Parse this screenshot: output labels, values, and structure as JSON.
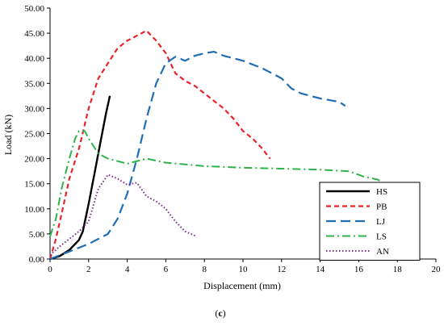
{
  "chart_data": {
    "type": "line",
    "title": "",
    "xlabel": "Displacement (mm)",
    "ylabel": "Load (kN)",
    "xlim": [
      0,
      20
    ],
    "ylim": [
      0,
      50
    ],
    "x_ticks": [
      "0",
      "2",
      "4",
      "6",
      "8",
      "10",
      "12",
      "14",
      "16",
      "18",
      "20"
    ],
    "y_ticks": [
      "0.00",
      "5.00",
      "10.00",
      "15.00",
      "20.00",
      "25.00",
      "30.00",
      "35.00",
      "40.00",
      "45.00",
      "50.00"
    ],
    "grid": false,
    "legend_position": "bottom-right",
    "caption_prefix": "(",
    "caption_letter": "c",
    "caption_suffix": ")",
    "series": [
      {
        "name": "HS",
        "color": "#000000",
        "dash": "solid",
        "points": [
          [
            0,
            0
          ],
          [
            0.5,
            0.6
          ],
          [
            1.0,
            1.8
          ],
          [
            1.5,
            3.8
          ],
          [
            1.7,
            5.5
          ],
          [
            2.0,
            11
          ],
          [
            2.3,
            17
          ],
          [
            2.6,
            23
          ],
          [
            2.9,
            29
          ],
          [
            3.1,
            32.5
          ]
        ]
      },
      {
        "name": "PB",
        "color": "#e8242a",
        "dash": "dashed",
        "points": [
          [
            0,
            0
          ],
          [
            0.3,
            4
          ],
          [
            0.6,
            9
          ],
          [
            1.0,
            16
          ],
          [
            1.5,
            22
          ],
          [
            2.0,
            30
          ],
          [
            2.5,
            36
          ],
          [
            3.0,
            39
          ],
          [
            3.5,
            42
          ],
          [
            4.0,
            43.5
          ],
          [
            4.5,
            44.5
          ],
          [
            5.0,
            45.5
          ],
          [
            5.5,
            43.5
          ],
          [
            6.0,
            41
          ],
          [
            6.5,
            37
          ],
          [
            7.0,
            35.5
          ],
          [
            7.5,
            34.5
          ],
          [
            8.0,
            33
          ],
          [
            8.5,
            31.5
          ],
          [
            9.0,
            30
          ],
          [
            9.5,
            28
          ],
          [
            10.0,
            25.5
          ],
          [
            10.5,
            24
          ],
          [
            11.0,
            22
          ],
          [
            11.4,
            20
          ]
        ]
      },
      {
        "name": "LJ",
        "color": "#1f6db4",
        "dash": "longdash",
        "points": [
          [
            0,
            0
          ],
          [
            1.0,
            1.5
          ],
          [
            2.0,
            3
          ],
          [
            3.0,
            5
          ],
          [
            3.5,
            8
          ],
          [
            4.0,
            13
          ],
          [
            4.5,
            20
          ],
          [
            5.0,
            28
          ],
          [
            5.5,
            35
          ],
          [
            6.0,
            39
          ],
          [
            6.5,
            40.3
          ],
          [
            7.0,
            39.5
          ],
          [
            7.5,
            40.5
          ],
          [
            8.0,
            41
          ],
          [
            8.5,
            41.3
          ],
          [
            9.0,
            40.5
          ],
          [
            10.0,
            39.5
          ],
          [
            11.0,
            38
          ],
          [
            12.0,
            36
          ],
          [
            12.5,
            34
          ],
          [
            13.0,
            33
          ],
          [
            14.0,
            32
          ],
          [
            15.0,
            31.3
          ],
          [
            15.3,
            30.5
          ]
        ]
      },
      {
        "name": "LS",
        "color": "#2db34a",
        "dash": "dashdot",
        "points": [
          [
            0,
            4.5
          ],
          [
            0.3,
            8
          ],
          [
            0.6,
            14
          ],
          [
            1.0,
            20
          ],
          [
            1.3,
            24
          ],
          [
            1.5,
            25.5
          ],
          [
            1.8,
            25.5
          ],
          [
            2.0,
            24
          ],
          [
            2.5,
            21
          ],
          [
            3.0,
            20
          ],
          [
            4.0,
            19
          ],
          [
            5.0,
            20
          ],
          [
            6.0,
            19.2
          ],
          [
            8.0,
            18.5
          ],
          [
            10.0,
            18.2
          ],
          [
            12.0,
            18
          ],
          [
            14.0,
            17.8
          ],
          [
            15.5,
            17.5
          ],
          [
            16.2,
            16.5
          ],
          [
            17.0,
            15.8
          ],
          [
            17.3,
            15
          ]
        ]
      },
      {
        "name": "AN",
        "color": "#7a2a8c",
        "dash": "dotted",
        "points": [
          [
            0,
            0.8
          ],
          [
            0.5,
            2.5
          ],
          [
            1.0,
            4
          ],
          [
            1.5,
            5.5
          ],
          [
            2.0,
            7.5
          ],
          [
            2.5,
            14
          ],
          [
            3.0,
            16.8
          ],
          [
            3.5,
            16
          ],
          [
            4.0,
            14.8
          ],
          [
            4.5,
            15.2
          ],
          [
            5.0,
            12.5
          ],
          [
            5.5,
            11.5
          ],
          [
            6.0,
            10
          ],
          [
            6.5,
            7.5
          ],
          [
            7.0,
            5.5
          ],
          [
            7.6,
            4.5
          ]
        ]
      }
    ]
  }
}
